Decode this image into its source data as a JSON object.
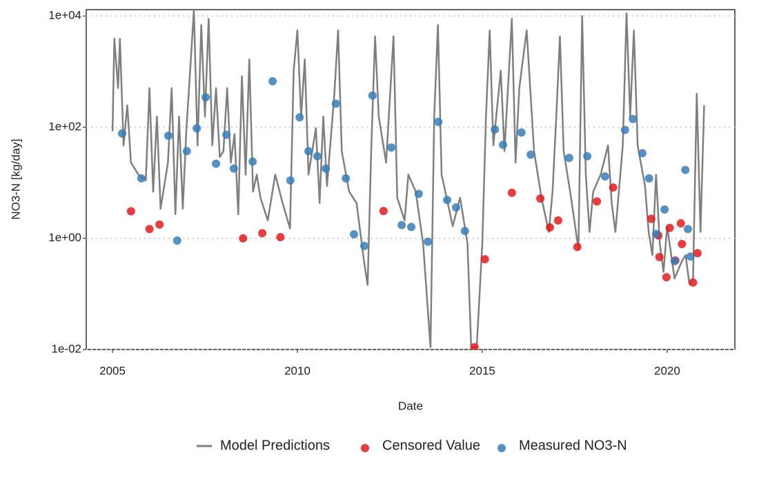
{
  "chart_data": {
    "type": "line",
    "xlabel": "Date",
    "ylabel": "NO3-N [kg/day]",
    "xlim": [
      2004.29,
      2021.83
    ],
    "xticks": [
      2005,
      2010,
      2015,
      2020
    ],
    "ylim": [
      0.01,
      13000
    ],
    "log_y": true,
    "yticks": [
      {
        "value": 0.01,
        "label": "1e-02"
      },
      {
        "value": 1,
        "label": "1e+00"
      },
      {
        "value": 100,
        "label": "1e+02"
      },
      {
        "value": 10000,
        "label": "1e+04"
      }
    ],
    "grid": true,
    "legend": "bottom",
    "series": [
      {
        "name": "Model Predictions",
        "type": "line",
        "color": "#7f7f7f",
        "x": [
          2005.0,
          2005.05,
          2005.15,
          2005.2,
          2005.3,
          2005.4,
          2005.5,
          2005.7,
          2005.9,
          2006.0,
          2006.1,
          2006.2,
          2006.3,
          2006.5,
          2006.6,
          2006.7,
          2006.8,
          2006.9,
          2007.0,
          2007.1,
          2007.2,
          2007.3,
          2007.4,
          2007.5,
          2007.6,
          2007.7,
          2007.8,
          2007.9,
          2008.0,
          2008.1,
          2008.2,
          2008.3,
          2008.4,
          2008.5,
          2008.6,
          2008.7,
          2008.8,
          2008.9,
          2009.0,
          2009.2,
          2009.4,
          2009.6,
          2009.8,
          2009.9,
          2010.0,
          2010.1,
          2010.2,
          2010.3,
          2010.5,
          2010.6,
          2010.7,
          2010.8,
          2011.0,
          2011.1,
          2011.2,
          2011.4,
          2011.6,
          2011.8,
          2011.9,
          2012.0,
          2012.1,
          2012.2,
          2012.4,
          2012.6,
          2012.7,
          2012.9,
          2013.0,
          2013.2,
          2013.4,
          2013.6,
          2013.7,
          2013.8,
          2013.9,
          2014.0,
          2014.2,
          2014.4,
          2014.6,
          2014.7,
          2014.85,
          2015.0,
          2015.1,
          2015.2,
          2015.3,
          2015.5,
          2015.6,
          2015.8,
          2015.9,
          2016.0,
          2016.2,
          2016.4,
          2016.6,
          2016.8,
          2016.9,
          2017.0,
          2017.1,
          2017.2,
          2017.4,
          2017.6,
          2017.7,
          2017.8,
          2017.9,
          2018.0,
          2018.2,
          2018.4,
          2018.5,
          2018.6,
          2018.8,
          2018.9,
          2019.0,
          2019.1,
          2019.2,
          2019.4,
          2019.5,
          2019.6,
          2019.7,
          2019.8,
          2019.9,
          2020.0,
          2020.2,
          2020.4,
          2020.5,
          2020.6,
          2020.7,
          2020.8,
          2020.9,
          2021.0
        ],
        "values": [
          85,
          3900,
          505,
          3900,
          47,
          248,
          23,
          14,
          11,
          505,
          6.9,
          155,
          3.4,
          23,
          505,
          2.7,
          155,
          3.4,
          96,
          1040,
          12900,
          47,
          6900,
          155,
          8900,
          47,
          505,
          29,
          37,
          505,
          23,
          75,
          2.7,
          820,
          14,
          1660,
          6.9,
          14,
          5.4,
          2.1,
          14,
          4.3,
          1.5,
          1040,
          5500,
          155,
          1660,
          14,
          96,
          4.3,
          155,
          8.8,
          400,
          5500,
          37,
          6.9,
          4.3,
          0.39,
          0.145,
          47,
          4300,
          155,
          23,
          4300,
          5.4,
          2.1,
          14,
          6.9,
          0.81,
          0.011,
          155,
          6900,
          14,
          6.9,
          1.65,
          5.4,
          0.81,
          0.011,
          0.011,
          0.81,
          155,
          5500,
          47,
          1040,
          37,
          8900,
          23,
          505,
          5500,
          37,
          5.4,
          1.3,
          6.9,
          155,
          4300,
          37,
          5.4,
          0.64,
          10000,
          14,
          1.3,
          6.9,
          14,
          47,
          4.3,
          1.3,
          47,
          11200,
          155,
          5500,
          47,
          8.8,
          1.3,
          0.5,
          14,
          0.81,
          0.25,
          1.65,
          0.19,
          0.39,
          0.5,
          0.15,
          0.19,
          400,
          1.3,
          248
        ]
      },
      {
        "name": "Censored Value",
        "type": "scatter",
        "color": "#e41a1c",
        "x": [
          2005.5,
          2006.0,
          2006.27,
          2008.53,
          2009.05,
          2009.54,
          2012.33,
          2014.79,
          2015.07,
          2015.8,
          2016.57,
          2016.83,
          2017.05,
          2017.57,
          2018.1,
          2018.54,
          2019.57,
          2019.76,
          2019.79,
          2019.98,
          2020.07,
          2020.22,
          2020.37,
          2020.4,
          2020.7,
          2020.82
        ],
        "values": [
          3.07,
          1.47,
          1.77,
          1.0,
          1.24,
          1.05,
          3.1,
          0.011,
          0.42,
          6.6,
          5.2,
          1.57,
          2.1,
          0.7,
          4.6,
          8.2,
          2.25,
          1.13,
          0.46,
          0.2,
          1.54,
          0.4,
          1.86,
          0.79,
          0.16,
          0.54
        ]
      },
      {
        "name": "Measured NO3-N",
        "type": "scatter",
        "color": "#377eb8",
        "x": [
          2005.26,
          2005.78,
          2006.51,
          2006.75,
          2007.01,
          2007.28,
          2007.52,
          2007.8,
          2008.08,
          2008.28,
          2008.79,
          2009.33,
          2009.81,
          2010.06,
          2010.3,
          2010.54,
          2010.77,
          2011.04,
          2011.31,
          2011.53,
          2011.81,
          2012.03,
          2012.54,
          2012.82,
          2013.08,
          2013.28,
          2013.53,
          2013.81,
          2014.05,
          2014.29,
          2014.53,
          2015.34,
          2015.56,
          2016.06,
          2016.31,
          2017.35,
          2017.84,
          2018.32,
          2018.86,
          2019.07,
          2019.33,
          2019.51,
          2019.7,
          2019.93,
          2020.2,
          2020.49,
          2020.56,
          2020.63
        ],
        "values": [
          77,
          12,
          70,
          0.91,
          37,
          95,
          345,
          22,
          73,
          18,
          24,
          670,
          11,
          150,
          37,
          30,
          18,
          265,
          12,
          1.18,
          0.73,
          370,
          43,
          1.73,
          1.6,
          6.3,
          0.87,
          124,
          4.9,
          3.6,
          1.36,
          91,
          48,
          80,
          32,
          28,
          30,
          13,
          89,
          140,
          34,
          12,
          1.2,
          3.3,
          0.39,
          17,
          1.47,
          0.47
        ]
      }
    ]
  }
}
